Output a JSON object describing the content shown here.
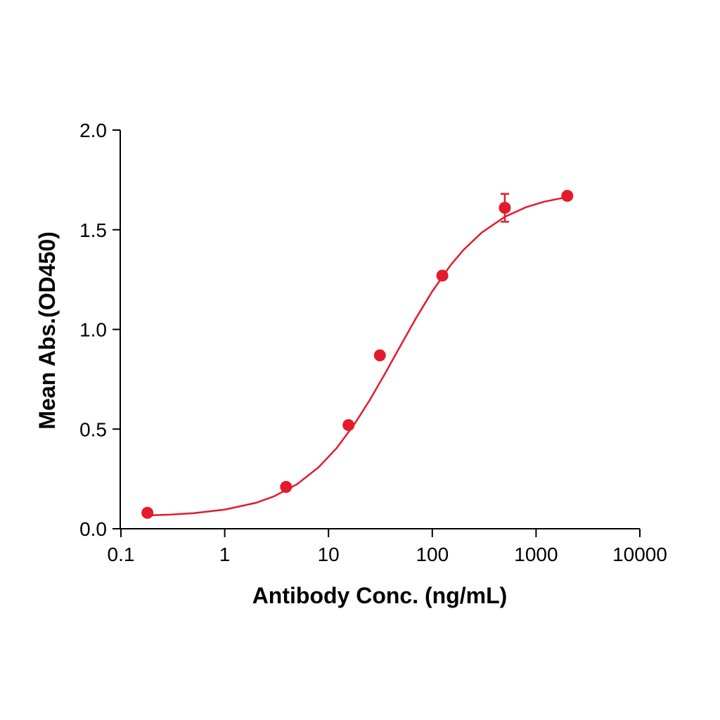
{
  "chart_data": {
    "type": "scatter",
    "x_label": "Antibody Conc. (ng/mL)",
    "y_label": "Mean Abs.(OD450)",
    "xscale": "log",
    "xlim": [
      0.1,
      10000
    ],
    "ylim": [
      0,
      2
    ],
    "xticks": [
      0.1,
      1,
      10,
      100,
      1000,
      10000
    ],
    "yticks": [
      {
        "value": 0,
        "label": "0.0"
      },
      {
        "value": 0.5,
        "label": "0.5"
      },
      {
        "value": 1,
        "label": "1.0"
      },
      {
        "value": 1.5,
        "label": "1.5"
      },
      {
        "value": 2,
        "label": "2.0"
      }
    ],
    "color": "#e31b2c",
    "x": [
      0.18,
      3.9,
      15.6,
      31.25,
      125,
      500,
      2000
    ],
    "values": [
      0.08,
      0.21,
      0.52,
      0.87,
      1.27,
      1.61,
      1.67
    ],
    "errors": [
      null,
      null,
      null,
      null,
      null,
      0.07,
      null
    ],
    "fit": {
      "type": "line",
      "x": [
        0.18,
        0.3,
        0.5,
        1,
        2,
        3,
        5,
        8,
        12,
        18,
        25,
        35,
        50,
        70,
        100,
        150,
        200,
        300,
        500,
        800,
        1200,
        2000
      ],
      "values": [
        0.067,
        0.071,
        0.078,
        0.096,
        0.13,
        0.163,
        0.224,
        0.308,
        0.405,
        0.529,
        0.646,
        0.778,
        0.923,
        1.058,
        1.191,
        1.322,
        1.399,
        1.486,
        1.565,
        1.613,
        1.641,
        1.664
      ]
    }
  }
}
